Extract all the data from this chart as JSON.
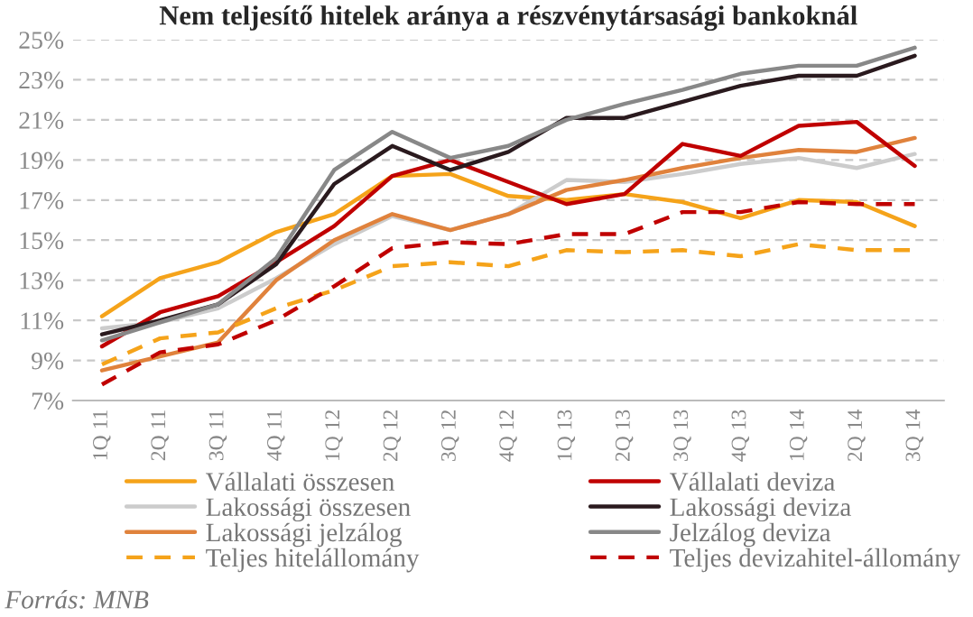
{
  "chart_data": {
    "type": "line",
    "title": "Nem teljesítő hitelek aránya a részvénytársasági bankoknál",
    "categories": [
      "1Q 11",
      "2Q 11",
      "3Q 11",
      "4Q 11",
      "1Q 12",
      "2Q 12",
      "3Q 12",
      "4Q 12",
      "1Q 13",
      "2Q 13",
      "3Q 13",
      "4Q 13",
      "1Q 14",
      "2Q 14",
      "3Q 14"
    ],
    "series": [
      {
        "name": "Vállalati összesen",
        "color": "#f5a31a",
        "line_style": "solid",
        "values": [
          11.2,
          13.1,
          13.9,
          15.4,
          16.3,
          18.2,
          18.3,
          17.2,
          17.0,
          17.3,
          16.9,
          16.1,
          17.0,
          16.9,
          15.7
        ]
      },
      {
        "name": "Lakossági összesen",
        "color": "#cccccc",
        "line_style": "solid",
        "values": [
          10.6,
          10.9,
          11.6,
          13.1,
          14.8,
          16.2,
          15.5,
          16.3,
          18.0,
          17.9,
          18.3,
          18.8,
          19.1,
          18.6,
          19.3
        ]
      },
      {
        "name": "Lakossági jelzálog",
        "color": "#e0823c",
        "line_style": "solid",
        "values": [
          8.5,
          9.2,
          9.9,
          13.0,
          15.0,
          16.3,
          15.5,
          16.3,
          17.5,
          18.0,
          18.6,
          19.1,
          19.5,
          19.4,
          20.1
        ]
      },
      {
        "name": "Teljes hitelállomány",
        "color": "#f5a31a",
        "line_style": "dashed",
        "values": [
          8.8,
          10.1,
          10.4,
          11.6,
          12.5,
          13.7,
          13.9,
          13.7,
          14.5,
          14.4,
          14.5,
          14.2,
          14.8,
          14.5,
          14.5
        ]
      },
      {
        "name": "Vállalati deviza",
        "color": "#c00000",
        "line_style": "solid",
        "values": [
          9.7,
          11.4,
          12.2,
          13.9,
          15.7,
          18.2,
          19.0,
          17.9,
          16.8,
          17.3,
          19.8,
          19.2,
          20.7,
          20.9,
          18.7
        ]
      },
      {
        "name": "Lakossági deviza",
        "color": "#2a1a1e",
        "line_style": "solid",
        "values": [
          10.3,
          11.0,
          11.8,
          13.8,
          17.8,
          19.7,
          18.5,
          19.4,
          21.1,
          21.1,
          21.9,
          22.7,
          23.2,
          23.2,
          24.2
        ]
      },
      {
        "name": "Jelzálog deviza",
        "color": "#888888",
        "line_style": "solid",
        "values": [
          10.0,
          10.9,
          11.8,
          14.1,
          18.5,
          20.4,
          19.1,
          19.7,
          21.0,
          21.8,
          22.5,
          23.3,
          23.7,
          23.7,
          24.6
        ]
      },
      {
        "name": "Teljes devizahitel-állomány",
        "color": "#c00000",
        "line_style": "dashed",
        "values": [
          7.8,
          9.4,
          9.8,
          11.0,
          12.7,
          14.6,
          14.9,
          14.8,
          15.3,
          15.3,
          16.4,
          16.4,
          16.9,
          16.8,
          16.8
        ]
      }
    ],
    "ylim": [
      7,
      25
    ],
    "yticks": [
      {
        "value": 7,
        "label": "7%"
      },
      {
        "value": 9,
        "label": "9%"
      },
      {
        "value": 11,
        "label": "11%"
      },
      {
        "value": 13,
        "label": "13%"
      },
      {
        "value": 15,
        "label": "15%"
      },
      {
        "value": 17,
        "label": "17%"
      },
      {
        "value": 19,
        "label": "19%"
      },
      {
        "value": 21,
        "label": "21%"
      },
      {
        "value": 23,
        "label": "23%"
      },
      {
        "value": 25,
        "label": "25%"
      }
    ],
    "grid": "y",
    "legend": "bottom",
    "marker": "none",
    "annotations": [
      "Forrás: MNB"
    ]
  }
}
